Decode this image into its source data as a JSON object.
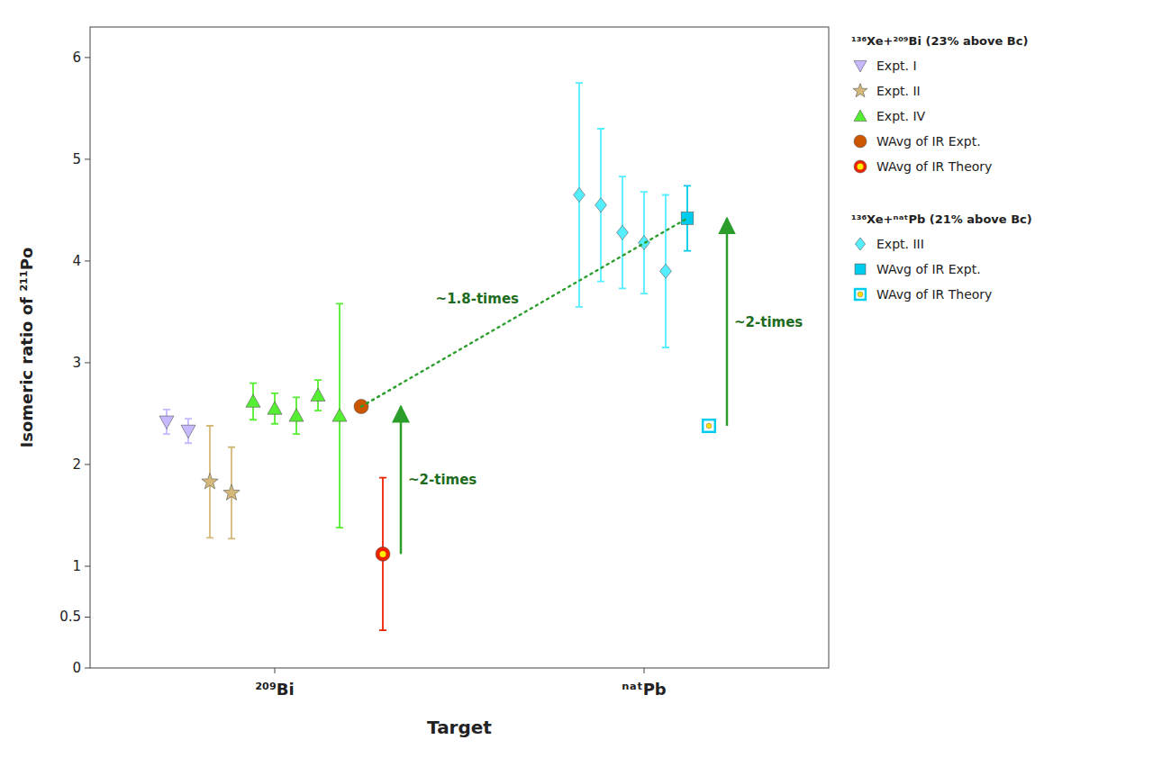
{
  "chart_data": {
    "type": "scatter",
    "xlabel": "Target",
    "ylabel": "Isomeric ratio of ²¹¹Po",
    "categories": [
      "²⁰⁹Bi",
      "ⁿᵃᵗPb"
    ],
    "ylim": [
      0,
      6.3
    ],
    "yticks": [
      0,
      0.5,
      1,
      2,
      3,
      4,
      5,
      6
    ],
    "grid": false,
    "legend": "right",
    "series": [
      {
        "name": "Expt. I",
        "color": "#c8b8ff",
        "marker": "triangle-down",
        "x": [
          "²⁰⁹Bi",
          "²⁰⁹Bi"
        ],
        "values": [
          2.42,
          2.33
        ],
        "errors": [
          0.12,
          0.12
        ]
      },
      {
        "name": "Expt. II",
        "color": "#d4b878",
        "marker": "star",
        "x": [
          "²⁰⁹Bi",
          "²⁰⁹Bi"
        ],
        "values": [
          1.83,
          1.72
        ],
        "errors": [
          0.55,
          0.45
        ]
      },
      {
        "name": "Expt. IV",
        "color": "#55ee33",
        "marker": "triangle-up",
        "x": [
          "²⁰⁹Bi",
          "²⁰⁹Bi",
          "²⁰⁹Bi",
          "²⁰⁹Bi",
          "²⁰⁹Bi"
        ],
        "values": [
          2.62,
          2.55,
          2.48,
          2.68,
          2.48
        ],
        "errors": [
          0.18,
          0.15,
          0.18,
          0.15,
          1.1
        ]
      },
      {
        "name": "WAvg of IR Expt.",
        "color": "#cc5500",
        "marker": "circle",
        "x": [
          "²⁰⁹Bi"
        ],
        "values": [
          2.57
        ]
      },
      {
        "name": "WAvg of IR Theory",
        "color": "#ee2200",
        "marker": "circle-dot",
        "x": [
          "²⁰⁹Bi"
        ],
        "values": [
          1.12
        ],
        "errors": [
          0.75
        ]
      },
      {
        "name": "Expt. III",
        "color": "#55eeff",
        "marker": "diamond",
        "x": [
          "ⁿᵃᵗPb",
          "ⁿᵃᵗPb",
          "ⁿᵃᵗPb",
          "ⁿᵃᵗPb",
          "ⁿᵃᵗPb"
        ],
        "values": [
          4.65,
          4.55,
          4.28,
          4.18,
          3.9
        ],
        "errors": [
          1.1,
          0.75,
          0.55,
          0.5,
          0.75
        ]
      },
      {
        "name": "WAvg of IR Expt.",
        "color": "#00ccee",
        "marker": "square",
        "x": [
          "ⁿᵃᵗPb"
        ],
        "values": [
          4.42
        ],
        "errors": [
          0.32
        ]
      },
      {
        "name": "WAvg of IR Theory",
        "color": "#00ccee",
        "marker": "square-open",
        "x": [
          "ⁿᵃᵗPb"
        ],
        "values": [
          2.38
        ]
      }
    ],
    "annotations": [
      "¹³⁶Xe+²⁰⁹Bi (23% above Bc)",
      "¹³⁶Xe+ⁿᵃᵗPb (21% above Bc)",
      "~1.8-times",
      "~2-times",
      "~2-times"
    ]
  }
}
